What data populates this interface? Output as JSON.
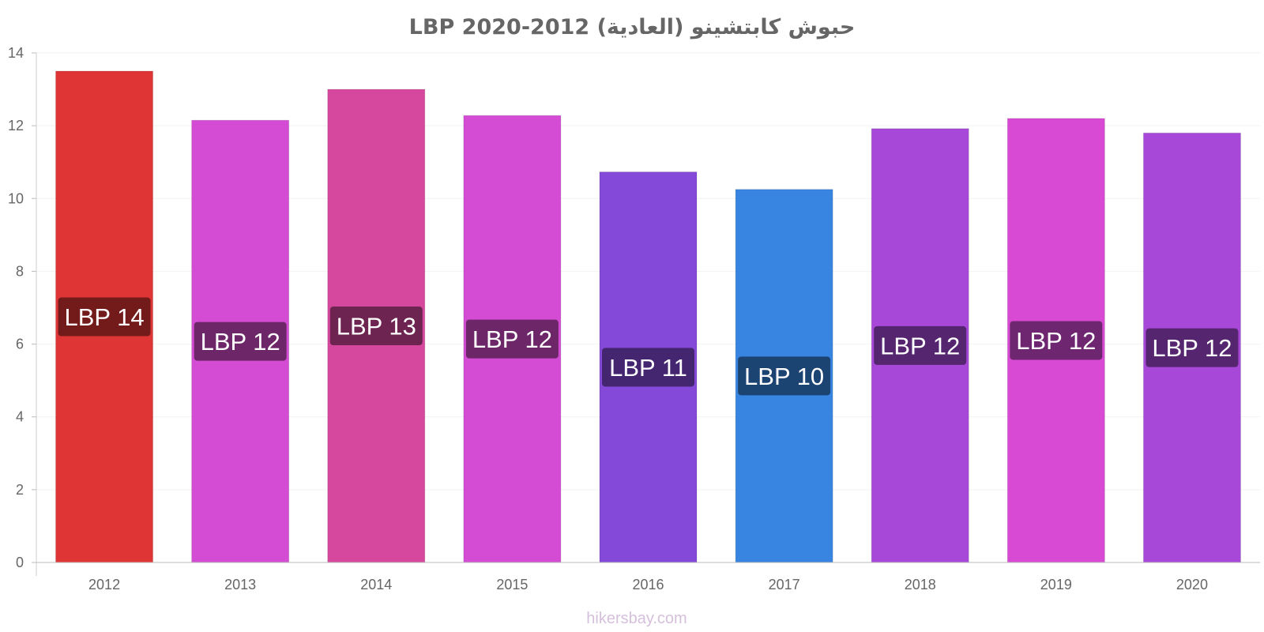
{
  "chart_data": {
    "type": "bar",
    "title": "حبوش كابتشينو (العادية) 2012-2020 LBP",
    "xlabel": "",
    "ylabel": "",
    "categories": [
      "2012",
      "2013",
      "2014",
      "2015",
      "2016",
      "2017",
      "2018",
      "2019",
      "2020"
    ],
    "values": [
      13.5,
      12.15,
      13.0,
      12.28,
      10.73,
      10.25,
      11.92,
      12.2,
      11.8
    ],
    "data_labels": [
      "LBP 14",
      "LBP 12",
      "LBP 13",
      "LBP 12",
      "LBP 11",
      "LBP 10",
      "LBP 12",
      "LBP 12",
      "LBP 12"
    ],
    "bar_colors": [
      "#e03535",
      "#d44bd4",
      "#d6489e",
      "#d44bd4",
      "#8549d9",
      "#3785e0",
      "#a748d9",
      "#d84ad4",
      "#a748d9"
    ],
    "label_bg_colors": [
      "#731b1b",
      "#6d2769",
      "#6e2451",
      "#6d2769",
      "#442570",
      "#1c4473",
      "#55256f",
      "#6f2670",
      "#55256f"
    ],
    "y_ticks": [
      0,
      2,
      4,
      6,
      8,
      10,
      12,
      14
    ],
    "ylim": [
      0,
      14
    ],
    "grid": true,
    "legend": "none"
  },
  "footer": "hikersbay.com"
}
